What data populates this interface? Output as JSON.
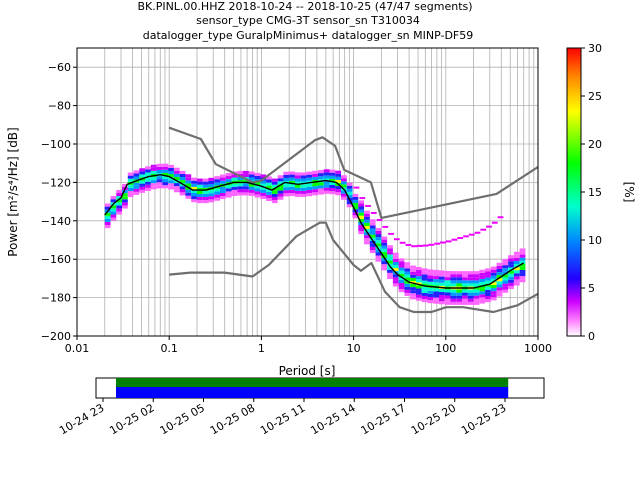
{
  "header": {
    "line1": "BK.PINL.00.HHZ   2018-10-24 -- 2018-10-25  (47/47 segments)",
    "line2": "sensor_type CMG-3T sensor_sn T310034",
    "line3": "datalogger_type GuralpMinimus+ datalogger_sn MINP-DF59"
  },
  "chart_data": {
    "type": "heatmap",
    "xlabel": "Period [s]",
    "ylabel": "Power [m²/s⁴/Hz] [dB]",
    "xscale": "log",
    "xlim": [
      0.01,
      1000
    ],
    "ylim": [
      -200,
      -50
    ],
    "x_ticks": [
      0.01,
      0.1,
      1,
      10,
      100,
      1000
    ],
    "x_tick_labels": [
      "0.01",
      "0.1",
      "1",
      "10",
      "100",
      "1000"
    ],
    "y_ticks": [
      -60,
      -80,
      -100,
      -120,
      -140,
      -160,
      -180,
      -200
    ],
    "y_tick_labels": [
      "−60",
      "−80",
      "−100",
      "−120",
      "−140",
      "−160",
      "−180",
      "−200"
    ],
    "grid": true,
    "colorbar": {
      "label": "[%]",
      "range": [
        0,
        30
      ],
      "ticks": [
        0,
        5,
        10,
        15,
        20,
        25,
        30
      ],
      "colors": [
        "#ffffff",
        "#ff00ff",
        "#0000ff",
        "#00ffff",
        "#00ff00",
        "#ffff00",
        "#ff0000"
      ]
    },
    "mode_curve": {
      "name": "mode",
      "color": "#000000",
      "points": [
        [
          0.02,
          -137
        ],
        [
          0.025,
          -131
        ],
        [
          0.03,
          -128
        ],
        [
          0.035,
          -121
        ],
        [
          0.045,
          -119
        ],
        [
          0.06,
          -117
        ],
        [
          0.08,
          -116
        ],
        [
          0.1,
          -117
        ],
        [
          0.13,
          -120
        ],
        [
          0.18,
          -124
        ],
        [
          0.25,
          -124
        ],
        [
          0.35,
          -122
        ],
        [
          0.5,
          -120
        ],
        [
          0.7,
          -120
        ],
        [
          1,
          -122
        ],
        [
          1.3,
          -124
        ],
        [
          1.8,
          -120
        ],
        [
          2.5,
          -121
        ],
        [
          3.5,
          -120
        ],
        [
          5,
          -119
        ],
        [
          6.5,
          -120
        ],
        [
          8,
          -124
        ],
        [
          10,
          -133
        ],
        [
          12,
          -141
        ],
        [
          15,
          -148
        ],
        [
          20,
          -157
        ],
        [
          25,
          -164
        ],
        [
          30,
          -168
        ],
        [
          40,
          -172
        ],
        [
          60,
          -174
        ],
        [
          100,
          -175
        ],
        [
          200,
          -175
        ],
        [
          300,
          -173
        ],
        [
          500,
          -166
        ],
        [
          700,
          -162
        ]
      ]
    },
    "nlnm_curve": {
      "name": "NLNM",
      "color": "#6e6e6e",
      "points": [
        [
          0.1,
          -168
        ],
        [
          0.17,
          -167
        ],
        [
          0.4,
          -167
        ],
        [
          0.8,
          -169
        ],
        [
          1.2,
          -163
        ],
        [
          2.4,
          -148
        ],
        [
          4.3,
          -141
        ],
        [
          5,
          -141
        ],
        [
          6,
          -150
        ],
        [
          10,
          -163
        ],
        [
          12,
          -166
        ],
        [
          15.6,
          -162
        ],
        [
          21.9,
          -177
        ],
        [
          31.6,
          -185
        ],
        [
          45,
          -187.5
        ],
        [
          70,
          -187.5
        ],
        [
          101,
          -185
        ],
        [
          154,
          -185
        ],
        [
          328,
          -187.5
        ],
        [
          600,
          -184
        ],
        [
          1000,
          -178
        ]
      ]
    },
    "nhnm_curve": {
      "name": "NHNM",
      "color": "#6e6e6e",
      "points": [
        [
          0.1,
          -91.5
        ],
        [
          0.22,
          -97.4
        ],
        [
          0.32,
          -110.5
        ],
        [
          0.8,
          -120
        ],
        [
          1.0,
          -119
        ],
        [
          3.8,
          -98
        ],
        [
          4.6,
          -96.5
        ],
        [
          6.3,
          -101
        ],
        [
          7.9,
          -113.5
        ],
        [
          15.4,
          -120
        ],
        [
          20,
          -138.5
        ],
        [
          354.8,
          -126
        ],
        [
          1000,
          -112
        ]
      ]
    },
    "timeline": {
      "tick_labels": [
        "10-24 23",
        "10-25 02",
        "10-25 05",
        "10-25 08",
        "10-25 11",
        "10-25 14",
        "10-25 17",
        "10-25 20",
        "10-25 23"
      ],
      "data_coverage_fraction": 0.92,
      "colors": [
        "#008000",
        "#0000ff"
      ]
    }
  }
}
